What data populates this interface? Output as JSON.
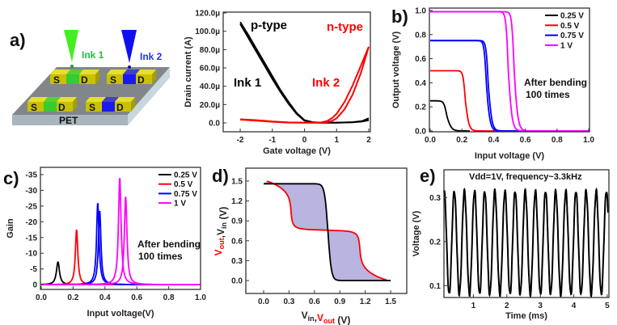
{
  "panel_labels": {
    "a": "a)",
    "b": "b)",
    "c": "c)",
    "d": "d)",
    "e": "e)"
  },
  "schematic": {
    "ink1": "Ink 1",
    "ink2": "Ink 2",
    "substrate": "PET",
    "source": "S",
    "drain": "D",
    "colors": {
      "ink1": "#33cc33",
      "ink2": "#1a1aee",
      "electrode": "#c9c100",
      "substrate_top": "#80868a"
    }
  },
  "chart_data": [
    {
      "id": "transfer",
      "type": "line",
      "xlabel": "Gate voltage (V)",
      "ylabel": "Drain current (A)",
      "xlim": [
        -2.53,
        2.05
      ],
      "ylim": [
        -9.7,
        120.9
      ],
      "y_unit": "µA",
      "xticks": [
        "-2",
        "-1",
        "0",
        "1",
        "2"
      ],
      "yticks": [
        {
          "v": 0,
          "label": "0.0"
        },
        {
          "v": 20,
          "label": "20.0µ"
        },
        {
          "v": 40,
          "label": "40.0µ"
        },
        {
          "v": 60,
          "label": "60.0µ"
        },
        {
          "v": 80,
          "label": "80.0µ"
        },
        {
          "v": 100,
          "label": "100.0µ"
        },
        {
          "v": 120,
          "label": "120.0µ"
        }
      ],
      "annotations": [
        {
          "text": "p-type",
          "color": "#000000"
        },
        {
          "text": "n-type",
          "color": "#ff0000"
        },
        {
          "text": "Ink 1",
          "color": "#000000"
        },
        {
          "text": "Ink 2",
          "color": "#ff0000"
        }
      ],
      "series": [
        {
          "name": "p-type (Ink 1) forward",
          "color": "#000000",
          "x": [
            -2,
            -1.75,
            -1.5,
            -1.25,
            -1,
            -0.75,
            -0.5,
            -0.25,
            0,
            0.25,
            0.5,
            1,
            1.5,
            1.8,
            2
          ],
          "y": [
            110,
            96,
            81,
            66,
            51,
            36,
            23,
            11,
            3,
            0.8,
            0.3,
            0.3,
            0.8,
            2,
            5
          ]
        },
        {
          "name": "p-type (Ink 1) reverse",
          "color": "#000000",
          "x": [
            -2,
            -1.75,
            -1.5,
            -1.25,
            -1,
            -0.75,
            -0.5,
            -0.25,
            0,
            0.25,
            0.5,
            1,
            1.5,
            1.8,
            2
          ],
          "y": [
            108,
            93,
            78,
            63,
            48,
            34,
            21,
            10,
            2.5,
            0.6,
            0.3,
            0.3,
            0.6,
            1.5,
            3
          ]
        },
        {
          "name": "n-type (Ink 2) forward",
          "color": "#ff0000",
          "x": [
            -2,
            -1.5,
            -1,
            -0.5,
            0,
            0.5,
            0.7,
            0.85,
            1,
            1.25,
            1.5,
            1.75,
            2
          ],
          "y": [
            4,
            3,
            1.5,
            0.5,
            0.2,
            0.4,
            2,
            5,
            10,
            23,
            41,
            62,
            83
          ]
        },
        {
          "name": "n-type (Ink 2) reverse",
          "color": "#ff0000",
          "x": [
            -2,
            -1.5,
            -1,
            -0.5,
            0,
            0.5,
            0.7,
            0.85,
            1,
            1.25,
            1.5,
            1.75,
            2
          ],
          "y": [
            3.5,
            2.5,
            1.2,
            0.4,
            0.2,
            0.3,
            0.8,
            2,
            5,
            15,
            31,
            54,
            83
          ]
        }
      ]
    },
    {
      "id": "vtc",
      "type": "line",
      "xlabel": "Input voltage (V)",
      "ylabel": "Output voltage (V)",
      "xlim": [
        -0.005,
        1.005
      ],
      "ylim": [
        -0.007,
        1.02
      ],
      "xticks": [
        "0.0",
        "0.2",
        "0.4",
        "0.6",
        "0.8",
        "1.0"
      ],
      "yticks": [
        {
          "v": 0,
          "label": "0.0"
        },
        {
          "v": 0.2,
          "label": "0.2"
        },
        {
          "v": 0.4,
          "label": "0.4"
        },
        {
          "v": 0.6,
          "label": "0.6"
        },
        {
          "v": 0.8,
          "label": "0.8"
        },
        {
          "v": 1.0,
          "label": "1.0"
        }
      ],
      "annotation": [
        "After bending",
        "100 times"
      ],
      "legend_position": "top-right",
      "series": [
        {
          "name": "0.25 V",
          "color": "#000000",
          "vdd": 0.25,
          "switching_voltages": [
            0.105
          ],
          "transition_width": 0.009,
          "x_end": 0.25
        },
        {
          "name": "0.5 V",
          "color": "#ff0000",
          "vdd": 0.5,
          "switching_voltages": [
            0.222
          ],
          "transition_width": 0.0072,
          "x_end": 0.5
        },
        {
          "name": "0.75 V",
          "color": "#0000ff",
          "vdd": 0.75,
          "switching_voltages": [
            0.355,
            0.367
          ],
          "transition_width": 0.0072,
          "x_end": 0.75
        },
        {
          "name": "1 V",
          "color": "#ff00ff",
          "vdd": 0.99,
          "switching_voltages": [
            0.493,
            0.53
          ],
          "transition_width": 0.0075,
          "x_end": 1.0
        }
      ]
    },
    {
      "id": "gain",
      "type": "line",
      "xlabel": "Input voltage(V)",
      "ylabel": "Gain",
      "xlim": [
        -0.005,
        1.0
      ],
      "ylim": [
        1.5,
        -37.3
      ],
      "xticks": [
        "0.0",
        "0.2",
        "0.4",
        "0.6",
        "0.8",
        "1.0"
      ],
      "yticks": [
        {
          "v": 0,
          "label": "0"
        },
        {
          "v": -5,
          "label": "-5"
        },
        {
          "v": -10,
          "label": "-10"
        },
        {
          "v": -15,
          "label": "-15"
        },
        {
          "v": -20,
          "label": "-20"
        },
        {
          "v": -25,
          "label": "-25"
        },
        {
          "v": -30,
          "label": "-30"
        },
        {
          "v": -35,
          "label": "-35"
        }
      ],
      "annotation": [
        "After bending",
        "100 times"
      ],
      "legend_position": "top-right",
      "series": [
        {
          "name": "0.25 V",
          "color": "#000000",
          "peaks": [
            {
              "x": 0.105,
              "gain": -7.2
            }
          ],
          "width": 0.009,
          "x_end": 0.25
        },
        {
          "name": "0.5 V",
          "color": "#ff0000",
          "peaks": [
            {
              "x": 0.222,
              "gain": -17.5
            }
          ],
          "width": 0.0072,
          "x_end": 0.5
        },
        {
          "name": "0.75 V",
          "color": "#0000ff",
          "peaks": [
            {
              "x": 0.355,
              "gain": -26
            },
            {
              "x": 0.367,
              "gain": -23.5
            }
          ],
          "width": 0.0072,
          "x_end": 0.75
        },
        {
          "name": "1 V",
          "color": "#ff00ff",
          "peaks": [
            {
              "x": 0.493,
              "gain": -34
            },
            {
              "x": 0.53,
              "gain": -28
            }
          ],
          "width": 0.0075,
          "x_end": 1.0
        }
      ]
    },
    {
      "id": "butterfly",
      "type": "line",
      "xlabel_parts": [
        {
          "text": "V",
          "sub": "in",
          "color": "#222222"
        },
        {
          "text": ",",
          "sub": "",
          "color": "#222222"
        },
        {
          "text": "V",
          "sub": "out",
          "color": "#ff0000"
        },
        {
          "text": " (V)",
          "sub": "",
          "color": "#222222"
        }
      ],
      "ylabel_parts": [
        {
          "text": "V",
          "sub": "out",
          "color": "#ff0000"
        },
        {
          "text": ",V",
          "sub": "in",
          "color": "#222222"
        },
        {
          "text": " (V)",
          "sub": "",
          "color": "#222222"
        }
      ],
      "xlim": [
        -0.21,
        1.69
      ],
      "ylim": [
        -0.195,
        1.695
      ],
      "xticks": [
        "0.0",
        "0.3",
        "0.6",
        "0.9",
        "1.2",
        "1.5"
      ],
      "yticks": [
        {
          "v": 0,
          "label": "0.0"
        },
        {
          "v": 0.3,
          "label": "0.3"
        },
        {
          "v": 0.6,
          "label": "0.6"
        },
        {
          "v": 0.9,
          "label": "0.9"
        },
        {
          "v": 1.2,
          "label": "1.2"
        },
        {
          "v": 1.5,
          "label": "1.5"
        }
      ],
      "fill_color": "#b9b4e0",
      "series": [
        {
          "name": "Vout vs Vin",
          "color": "#000000",
          "vdd": 1.46,
          "switching_voltage": 0.76,
          "width": 0.02
        },
        {
          "name": "Vin vs Vout (mirrored)",
          "color": "#ff0000",
          "vdd": 1.46,
          "switching_voltage": 0.76,
          "width": 0.12
        }
      ]
    },
    {
      "id": "oscillator",
      "type": "line",
      "title": "Vdd=1V, frequency~3.3kHz",
      "xlabel": "Time (ms)",
      "ylabel": "Voltage (V)",
      "xlim": [
        0.12,
        5.05
      ],
      "ylim": [
        0.073,
        0.363
      ],
      "xticks": [
        "1",
        "2",
        "3",
        "4",
        "5"
      ],
      "yticks": [
        {
          "v": 0.1,
          "label": "0.1"
        },
        {
          "v": 0.2,
          "label": "0.2"
        },
        {
          "v": 0.3,
          "label": "0.3"
        }
      ],
      "series": [
        {
          "name": "Output",
          "color": "#000000",
          "frequency_khz": 3.3,
          "v_min": 0.08,
          "v_max": 0.315,
          "t_start": 0.12,
          "t_end": 5.02
        }
      ]
    }
  ]
}
